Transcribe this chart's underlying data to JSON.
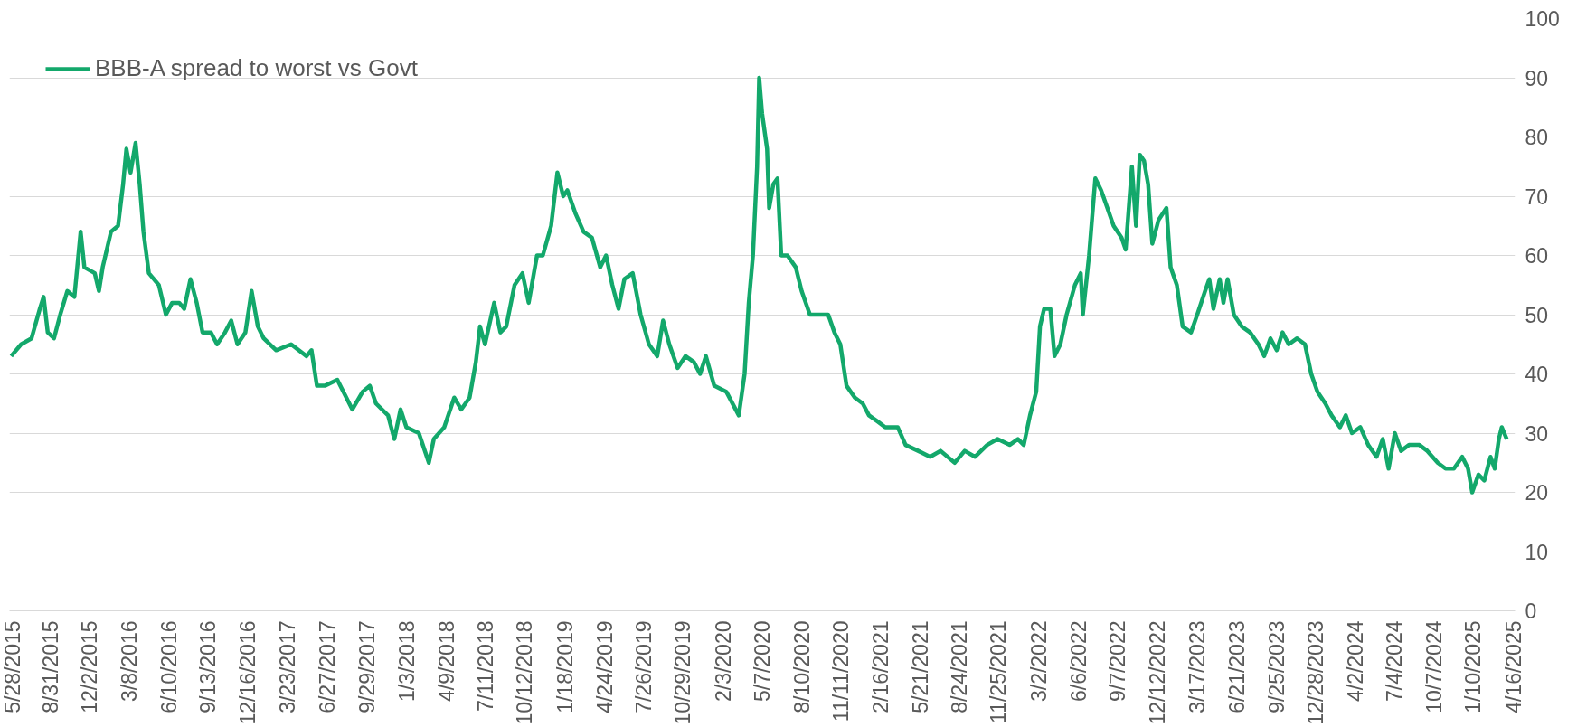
{
  "chart_data": {
    "type": "line",
    "x": [
      "2015-05-28",
      "2015-06-21",
      "2015-07-16",
      "2015-08-05",
      "2015-08-14",
      "2015-08-24",
      "2015-09-08",
      "2015-09-23",
      "2015-10-10",
      "2015-10-27",
      "2015-11-11",
      "2015-11-20",
      "2015-12-15",
      "2015-12-25",
      "2016-01-03",
      "2016-01-23",
      "2016-02-09",
      "2016-02-21",
      "2016-02-29",
      "2016-03-10",
      "2016-03-22",
      "2016-04-01",
      "2016-04-10",
      "2016-04-23",
      "2016-05-17",
      "2016-06-03",
      "2016-06-18",
      "2016-07-05",
      "2016-07-17",
      "2016-08-01",
      "2016-08-16",
      "2016-08-30",
      "2016-09-19",
      "2016-10-04",
      "2016-10-23",
      "2016-11-07",
      "2016-11-22",
      "2016-12-11",
      "2016-12-26",
      "2017-01-10",
      "2017-01-24",
      "2017-02-23",
      "2017-03-31",
      "2017-05-07",
      "2017-05-19",
      "2017-06-01",
      "2017-06-20",
      "2017-07-20",
      "2017-08-25",
      "2017-09-19",
      "2017-10-06",
      "2017-10-21",
      "2017-11-19",
      "2017-12-04",
      "2017-12-19",
      "2018-01-02",
      "2018-02-01",
      "2018-02-25",
      "2018-03-09",
      "2018-04-03",
      "2018-04-27",
      "2018-05-14",
      "2018-06-03",
      "2018-06-18",
      "2018-06-28",
      "2018-07-10",
      "2018-08-01",
      "2018-08-16",
      "2018-08-30",
      "2018-09-19",
      "2018-10-08",
      "2018-10-23",
      "2018-11-12",
      "2018-11-26",
      "2018-12-16",
      "2018-12-31",
      "2019-01-14",
      "2019-01-24",
      "2019-02-13",
      "2019-03-04",
      "2019-03-24",
      "2019-04-13",
      "2019-04-27",
      "2019-05-12",
      "2019-05-27",
      "2019-06-10",
      "2019-06-30",
      "2019-07-19",
      "2019-08-08",
      "2019-08-28",
      "2019-09-11",
      "2019-09-26",
      "2019-10-16",
      "2019-11-04",
      "2019-11-24",
      "2019-12-09",
      "2019-12-23",
      "2020-01-12",
      "2020-02-10",
      "2020-03-11",
      "2020-03-25",
      "2020-04-04",
      "2020-04-14",
      "2020-04-24",
      "2020-04-29",
      "2020-05-06",
      "2020-05-18",
      "2020-05-23",
      "2020-06-02",
      "2020-06-12",
      "2020-06-21",
      "2020-07-06",
      "2020-07-26",
      "2020-08-09",
      "2020-08-29",
      "2020-10-12",
      "2020-10-27",
      "2020-11-10",
      "2020-11-25",
      "2020-12-15",
      "2021-01-03",
      "2021-01-18",
      "2021-02-07",
      "2021-02-26",
      "2021-03-28",
      "2021-04-16",
      "2021-05-16",
      "2021-06-14",
      "2021-07-09",
      "2021-08-12",
      "2021-09-05",
      "2021-09-30",
      "2021-10-29",
      "2021-11-23",
      "2021-12-22",
      "2022-01-11",
      "2022-01-25",
      "2022-02-09",
      "2022-02-24",
      "2022-03-05",
      "2022-03-15",
      "2022-03-30",
      "2022-04-09",
      "2022-04-23",
      "2022-05-08",
      "2022-05-28",
      "2022-06-11",
      "2022-06-16",
      "2022-07-01",
      "2022-07-16",
      "2022-07-30",
      "2022-08-14",
      "2022-08-29",
      "2022-09-17",
      "2022-09-27",
      "2022-10-12",
      "2022-10-22",
      "2022-10-31",
      "2022-11-10",
      "2022-11-20",
      "2022-11-30",
      "2022-12-15",
      "2023-01-03",
      "2023-01-13",
      "2023-01-28",
      "2023-02-11",
      "2023-03-03",
      "2023-03-18",
      "2023-04-06",
      "2023-04-16",
      "2023-04-26",
      "2023-05-11",
      "2023-05-20",
      "2023-05-30",
      "2023-06-14",
      "2023-07-03",
      "2023-07-23",
      "2023-08-12",
      "2023-08-26",
      "2023-09-10",
      "2023-09-25",
      "2023-10-09",
      "2023-10-24",
      "2023-11-13",
      "2023-12-02",
      "2023-12-17",
      "2024-01-01",
      "2024-01-20",
      "2024-02-04",
      "2024-02-24",
      "2024-03-09",
      "2024-03-24",
      "2024-04-13",
      "2024-05-02",
      "2024-05-22",
      "2024-06-06",
      "2024-06-20",
      "2024-07-05",
      "2024-07-20",
      "2024-08-08",
      "2024-09-02",
      "2024-09-21",
      "2024-10-16",
      "2024-11-04",
      "2024-11-24",
      "2024-12-14",
      "2024-12-28",
      "2025-01-07",
      "2025-01-22",
      "2025-02-05",
      "2025-02-20",
      "2025-03-02",
      "2025-03-12",
      "2025-03-19",
      "2025-03-31"
    ],
    "series": [
      {
        "name": "BBB-A spread to worst vs Govt",
        "color": "#13a86b",
        "values": [
          43,
          45,
          46,
          51,
          53,
          47,
          46,
          50,
          54,
          53,
          64,
          58,
          57,
          54,
          58,
          64,
          65,
          72,
          78,
          74,
          79,
          72,
          64,
          57,
          55,
          50,
          52,
          52,
          51,
          56,
          52,
          47,
          47,
          45,
          47,
          49,
          45,
          47,
          54,
          48,
          46,
          44,
          45,
          43,
          44,
          38,
          38,
          39,
          34,
          37,
          38,
          35,
          33,
          29,
          34,
          31,
          30,
          25,
          29,
          31,
          36,
          34,
          36,
          42,
          48,
          45,
          52,
          47,
          48,
          55,
          57,
          52,
          60,
          60,
          65,
          74,
          70,
          71,
          67,
          64,
          63,
          58,
          60,
          55,
          51,
          56,
          57,
          50,
          45,
          43,
          49,
          45,
          41,
          43,
          42,
          40,
          43,
          38,
          37,
          33,
          40,
          52,
          60,
          75,
          90,
          84,
          78,
          68,
          72,
          73,
          60,
          60,
          58,
          54,
          50,
          50,
          47,
          45,
          38,
          36,
          35,
          33,
          32,
          31,
          31,
          28,
          27,
          26,
          27,
          25,
          27,
          26,
          28,
          29,
          28,
          29,
          28,
          33,
          37,
          48,
          51,
          51,
          43,
          45,
          50,
          55,
          57,
          50,
          60,
          73,
          71,
          68,
          65,
          63,
          61,
          75,
          65,
          77,
          76,
          72,
          62,
          66,
          68,
          58,
          55,
          48,
          47,
          50,
          54,
          56,
          51,
          56,
          52,
          56,
          50,
          48,
          47,
          45,
          43,
          46,
          44,
          47,
          45,
          46,
          45,
          40,
          37,
          35,
          33,
          31,
          33,
          30,
          31,
          28,
          26,
          29,
          24,
          30,
          27,
          28,
          28,
          27,
          25,
          24,
          24,
          26,
          24,
          20,
          23,
          22,
          26,
          24,
          29,
          31,
          29
        ]
      }
    ],
    "xlim": [
      "2015-05-24",
      "2025-04-20"
    ],
    "xticks": [
      {
        "value": "2015-05-28",
        "label": "5/28/2015"
      },
      {
        "value": "2015-08-31",
        "label": "8/31/2015"
      },
      {
        "value": "2015-12-02",
        "label": "12/2/2015"
      },
      {
        "value": "2016-03-08",
        "label": "3/8/2016"
      },
      {
        "value": "2016-06-10",
        "label": "6/10/2016"
      },
      {
        "value": "2016-09-13",
        "label": "9/13/2016"
      },
      {
        "value": "2016-12-16",
        "label": "12/16/2016"
      },
      {
        "value": "2017-03-23",
        "label": "3/23/2017"
      },
      {
        "value": "2017-06-27",
        "label": "6/27/2017"
      },
      {
        "value": "2017-09-29",
        "label": "9/29/2017"
      },
      {
        "value": "2018-01-03",
        "label": "1/3/2018"
      },
      {
        "value": "2018-04-09",
        "label": "4/9/2018"
      },
      {
        "value": "2018-07-11",
        "label": "7/11/2018"
      },
      {
        "value": "2018-10-12",
        "label": "10/12/2018"
      },
      {
        "value": "2019-01-18",
        "label": "1/18/2019"
      },
      {
        "value": "2019-04-24",
        "label": "4/24/2019"
      },
      {
        "value": "2019-07-26",
        "label": "7/26/2019"
      },
      {
        "value": "2019-10-29",
        "label": "10/29/2019"
      },
      {
        "value": "2020-02-03",
        "label": "2/3/2020"
      },
      {
        "value": "2020-05-07",
        "label": "5/7/2020"
      },
      {
        "value": "2020-08-10",
        "label": "8/10/2020"
      },
      {
        "value": "2020-11-11",
        "label": "11/11/2020"
      },
      {
        "value": "2021-02-16",
        "label": "2/16/2021"
      },
      {
        "value": "2021-05-21",
        "label": "5/21/2021"
      },
      {
        "value": "2021-08-24",
        "label": "8/24/2021"
      },
      {
        "value": "2021-11-25",
        "label": "11/25/2021"
      },
      {
        "value": "2022-03-02",
        "label": "3/2/2022"
      },
      {
        "value": "2022-06-06",
        "label": "6/6/2022"
      },
      {
        "value": "2022-09-07",
        "label": "9/7/2022"
      },
      {
        "value": "2022-12-12",
        "label": "12/12/2022"
      },
      {
        "value": "2023-03-17",
        "label": "3/17/2023"
      },
      {
        "value": "2023-06-21",
        "label": "6/21/2023"
      },
      {
        "value": "2023-09-25",
        "label": "9/25/2023"
      },
      {
        "value": "2023-12-28",
        "label": "12/28/2023"
      },
      {
        "value": "2024-04-02",
        "label": "4/2/2024"
      },
      {
        "value": "2024-07-04",
        "label": "7/4/2024"
      },
      {
        "value": "2024-10-07",
        "label": "10/7/2024"
      },
      {
        "value": "2025-01-10",
        "label": "1/10/2025"
      },
      {
        "value": "2025-04-16",
        "label": "4/16/2025"
      }
    ],
    "ylim": [
      0,
      100
    ],
    "yticks": [
      0,
      10,
      20,
      30,
      40,
      50,
      60,
      70,
      80,
      90,
      100
    ],
    "grid": "y",
    "legend": "top left",
    "marker": "none",
    "line_style": "solid"
  }
}
